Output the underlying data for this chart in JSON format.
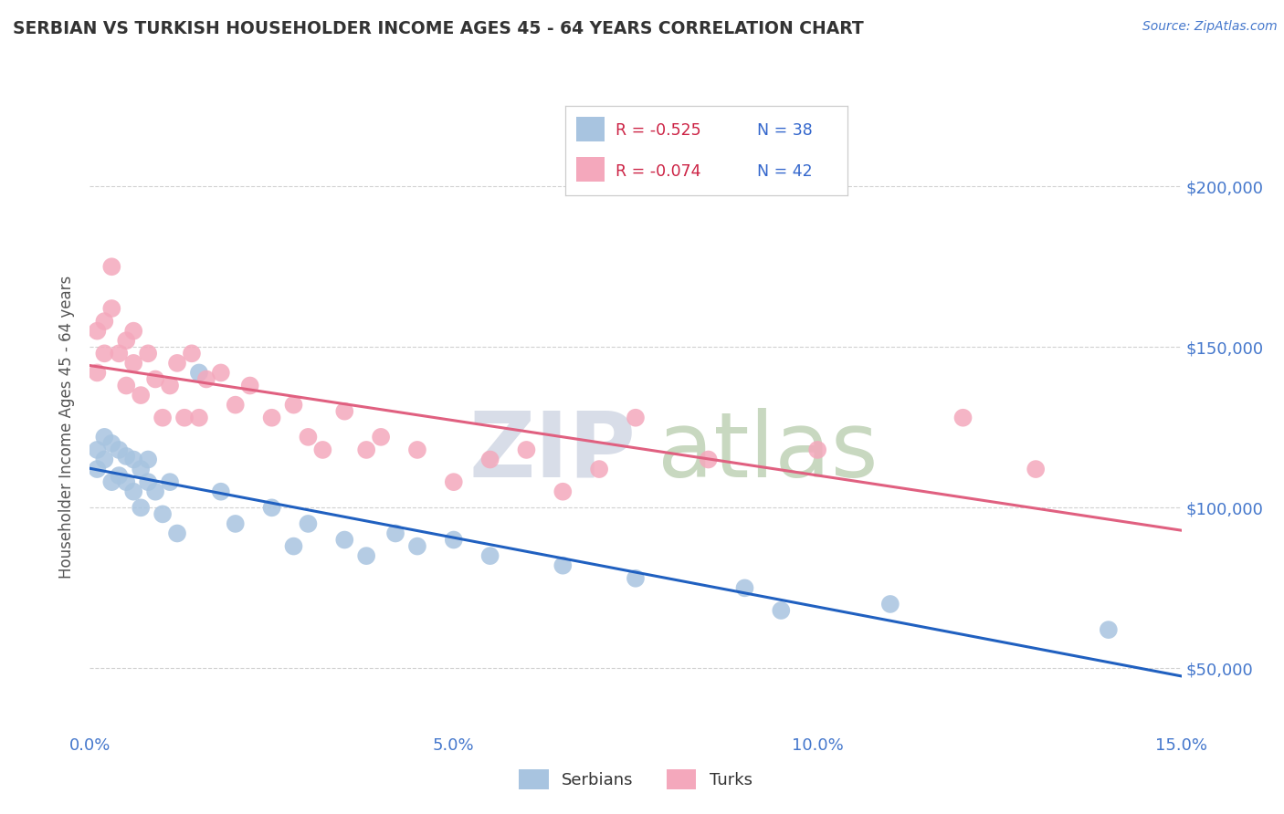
{
  "title": "SERBIAN VS TURKISH HOUSEHOLDER INCOME AGES 45 - 64 YEARS CORRELATION CHART",
  "source": "Source: ZipAtlas.com",
  "ylabel": "Householder Income Ages 45 - 64 years",
  "xlim": [
    0.0,
    0.15
  ],
  "ylim": [
    30000,
    220000
  ],
  "yticks": [
    50000,
    100000,
    150000,
    200000
  ],
  "xticks": [
    0.0,
    0.05,
    0.1,
    0.15
  ],
  "xtick_labels": [
    "0.0%",
    "5.0%",
    "10.0%",
    "15.0%"
  ],
  "ytick_labels": [
    "$50,000",
    "$100,000",
    "$150,000",
    "$200,000"
  ],
  "legend_r_serbian": "R = -0.525",
  "legend_n_serbian": "N = 38",
  "legend_r_turkish": "R = -0.074",
  "legend_n_turkish": "N = 42",
  "serbian_color": "#a8c4e0",
  "turkish_color": "#f4a8bc",
  "serbian_line_color": "#2060c0",
  "turkish_line_color": "#e06080",
  "background_color": "#ffffff",
  "grid_color": "#cccccc",
  "title_color": "#333333",
  "axis_label_color": "#555555",
  "tick_color": "#4477cc",
  "watermark_zip_color": "#d8dde8",
  "watermark_atlas_color": "#c8d8c0",
  "serbian_x": [
    0.001,
    0.001,
    0.002,
    0.002,
    0.003,
    0.003,
    0.004,
    0.004,
    0.005,
    0.005,
    0.006,
    0.006,
    0.007,
    0.007,
    0.008,
    0.008,
    0.009,
    0.01,
    0.011,
    0.012,
    0.015,
    0.018,
    0.02,
    0.025,
    0.028,
    0.03,
    0.035,
    0.038,
    0.042,
    0.045,
    0.05,
    0.055,
    0.065,
    0.075,
    0.09,
    0.095,
    0.11,
    0.14
  ],
  "serbian_y": [
    118000,
    112000,
    122000,
    115000,
    120000,
    108000,
    118000,
    110000,
    116000,
    108000,
    115000,
    105000,
    112000,
    100000,
    108000,
    115000,
    105000,
    98000,
    108000,
    92000,
    142000,
    105000,
    95000,
    100000,
    88000,
    95000,
    90000,
    85000,
    92000,
    88000,
    90000,
    85000,
    82000,
    78000,
    75000,
    68000,
    70000,
    62000
  ],
  "turkish_x": [
    0.001,
    0.001,
    0.002,
    0.002,
    0.003,
    0.003,
    0.004,
    0.005,
    0.005,
    0.006,
    0.006,
    0.007,
    0.008,
    0.009,
    0.01,
    0.011,
    0.012,
    0.013,
    0.014,
    0.015,
    0.016,
    0.018,
    0.02,
    0.022,
    0.025,
    0.028,
    0.03,
    0.032,
    0.035,
    0.038,
    0.04,
    0.045,
    0.05,
    0.055,
    0.06,
    0.065,
    0.07,
    0.075,
    0.085,
    0.1,
    0.12,
    0.13
  ],
  "turkish_y": [
    155000,
    142000,
    158000,
    148000,
    175000,
    162000,
    148000,
    152000,
    138000,
    145000,
    155000,
    135000,
    148000,
    140000,
    128000,
    138000,
    145000,
    128000,
    148000,
    128000,
    140000,
    142000,
    132000,
    138000,
    128000,
    132000,
    122000,
    118000,
    130000,
    118000,
    122000,
    118000,
    108000,
    115000,
    118000,
    105000,
    112000,
    128000,
    115000,
    118000,
    128000,
    112000
  ]
}
